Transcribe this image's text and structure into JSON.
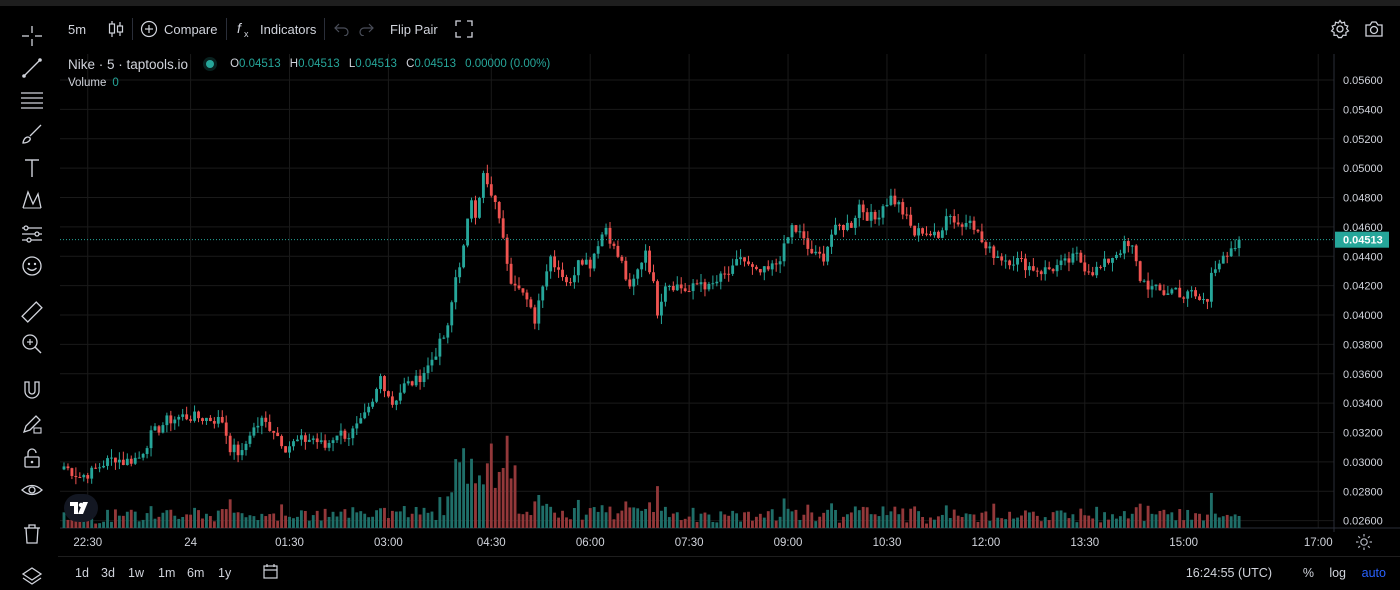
{
  "toolbar": {
    "interval": "5m",
    "compare_label": "Compare",
    "indicators_label": "Indicators",
    "flip_pair_label": "Flip Pair"
  },
  "legend": {
    "symbol": "Nike · 5 · taptools.io",
    "open_label": "O",
    "open": "0.04513",
    "high_label": "H",
    "high": "0.04513",
    "low_label": "L",
    "low": "0.04513",
    "close_label": "C",
    "close": "0.04513",
    "change": "0.00000 (0.00%)",
    "volume_label": "Volume",
    "volume": "0"
  },
  "timeframes": [
    "1d",
    "3d",
    "1w",
    "1m",
    "6m",
    "1y"
  ],
  "footer": {
    "clock": "16:24:55 (UTC)",
    "percent_label": "%",
    "log_label": "log",
    "auto_label": "auto"
  },
  "colors": {
    "up": "#26a69a",
    "down": "#ef5350",
    "up_volume": "#1f6e68",
    "down_volume": "#93383a",
    "grid": "#1a1a1a",
    "last_price": "#26a69a"
  },
  "icons": [
    "crosshair-icon",
    "trend-line-icon",
    "fib-retracement-icon",
    "brush-icon",
    "text-icon",
    "pattern-icon",
    "forecast-icon",
    "emoji-icon",
    "ruler-icon",
    "zoom-in-icon",
    "magnet-icon",
    "lock-drawing-icon",
    "unlock-icon",
    "eye-icon",
    "trash-icon",
    "layers-icon",
    "candles-icon",
    "plus-circle-icon",
    "fx-icon",
    "undo-icon",
    "redo-icon",
    "fullscreen-icon",
    "settings-gear-icon",
    "camera-icon",
    "calendar-range-icon",
    "time-settings-icon"
  ],
  "chart_data": {
    "type": "candlestick",
    "ylim": [
      0.0255,
      0.0575
    ],
    "y_ticks": [
      "0.05600",
      "0.05400",
      "0.05200",
      "0.05000",
      "0.04800",
      "0.04600",
      "0.04400",
      "0.04200",
      "0.04000",
      "0.03800",
      "0.03600",
      "0.03400",
      "0.03200",
      "0.03000",
      "0.02800",
      "0.02600"
    ],
    "y_tick_values": [
      0.056,
      0.054,
      0.052,
      0.05,
      0.048,
      0.046,
      0.044,
      0.042,
      0.04,
      0.038,
      0.036,
      0.034,
      0.032,
      0.03,
      0.028,
      0.026
    ],
    "x_ticks": [
      "22:30",
      "24",
      "01:30",
      "03:00",
      "04:30",
      "06:00",
      "07:30",
      "09:00",
      "10:30",
      "12:00",
      "13:30",
      "15:00",
      "17:00"
    ],
    "x_tick_bars": [
      6,
      32,
      57,
      82,
      108,
      133,
      158,
      183,
      208,
      233,
      258,
      283,
      317
    ],
    "last_price": 0.04513,
    "last_price_label": "0.04513",
    "grid": true,
    "anchors": [
      [
        0,
        0.0297
      ],
      [
        4,
        0.029
      ],
      [
        7,
        0.0293
      ],
      [
        10,
        0.0299
      ],
      [
        13,
        0.0303
      ],
      [
        15,
        0.03
      ],
      [
        19,
        0.0303
      ],
      [
        22,
        0.0318
      ],
      [
        26,
        0.0328
      ],
      [
        30,
        0.0331
      ],
      [
        35,
        0.033
      ],
      [
        40,
        0.0328
      ],
      [
        42,
        0.031
      ],
      [
        45,
        0.0305
      ],
      [
        47,
        0.032
      ],
      [
        50,
        0.0328
      ],
      [
        53,
        0.0322
      ],
      [
        56,
        0.031
      ],
      [
        59,
        0.0314
      ],
      [
        63,
        0.0316
      ],
      [
        66,
        0.031
      ],
      [
        69,
        0.032
      ],
      [
        72,
        0.0318
      ],
      [
        75,
        0.0326
      ],
      [
        78,
        0.0339
      ],
      [
        80,
        0.0358
      ],
      [
        83,
        0.034
      ],
      [
        86,
        0.0352
      ],
      [
        89,
        0.0355
      ],
      [
        92,
        0.0365
      ],
      [
        95,
        0.038
      ],
      [
        97,
        0.039
      ],
      [
        99,
        0.0426
      ],
      [
        101,
        0.0445
      ],
      [
        103,
        0.048
      ],
      [
        104,
        0.047
      ],
      [
        106,
        0.0495
      ],
      [
        108,
        0.048
      ],
      [
        110,
        0.0468
      ],
      [
        111,
        0.045
      ],
      [
        113,
        0.0425
      ],
      [
        115,
        0.0422
      ],
      [
        117,
        0.0408
      ],
      [
        119,
        0.0397
      ],
      [
        121,
        0.0423
      ],
      [
        123,
        0.044
      ],
      [
        125,
        0.0432
      ],
      [
        128,
        0.042
      ],
      [
        130,
        0.044
      ],
      [
        133,
        0.0435
      ],
      [
        135,
        0.045
      ],
      [
        137,
        0.046
      ],
      [
        139,
        0.0445
      ],
      [
        141,
        0.0435
      ],
      [
        143,
        0.0416
      ],
      [
        145,
        0.043
      ],
      [
        147,
        0.0445
      ],
      [
        149,
        0.042
      ],
      [
        150,
        0.0403
      ],
      [
        152,
        0.0422
      ],
      [
        155,
        0.042
      ],
      [
        158,
        0.0416
      ],
      [
        161,
        0.0423
      ],
      [
        163,
        0.0418
      ],
      [
        166,
        0.0425
      ],
      [
        169,
        0.043
      ],
      [
        171,
        0.044
      ],
      [
        173,
        0.0433
      ],
      [
        175,
        0.0428
      ],
      [
        178,
        0.043
      ],
      [
        180,
        0.0435
      ],
      [
        182,
        0.0445
      ],
      [
        184,
        0.046
      ],
      [
        186,
        0.0455
      ],
      [
        188,
        0.0445
      ],
      [
        190,
        0.044
      ],
      [
        192,
        0.044
      ],
      [
        194,
        0.0455
      ],
      [
        196,
        0.046
      ],
      [
        199,
        0.0462
      ],
      [
        201,
        0.0475
      ],
      [
        203,
        0.0468
      ],
      [
        205,
        0.0465
      ],
      [
        207,
        0.0475
      ],
      [
        209,
        0.048
      ],
      [
        211,
        0.0475
      ],
      [
        213,
        0.0465
      ],
      [
        215,
        0.0455
      ],
      [
        217,
        0.0458
      ],
      [
        219,
        0.0455
      ],
      [
        221,
        0.0452
      ],
      [
        223,
        0.047
      ],
      [
        225,
        0.0465
      ],
      [
        227,
        0.046
      ],
      [
        229,
        0.0468
      ],
      [
        231,
        0.0455
      ],
      [
        233,
        0.0445
      ],
      [
        235,
        0.0442
      ],
      [
        238,
        0.0438
      ],
      [
        241,
        0.0437
      ],
      [
        244,
        0.0433
      ],
      [
        247,
        0.043
      ],
      [
        250,
        0.0432
      ],
      [
        253,
        0.0435
      ],
      [
        256,
        0.044
      ],
      [
        258,
        0.0433
      ],
      [
        260,
        0.043
      ],
      [
        262,
        0.0432
      ],
      [
        265,
        0.044
      ],
      [
        268,
        0.0447
      ],
      [
        270,
        0.0445
      ],
      [
        272,
        0.0425
      ],
      [
        275,
        0.0418
      ],
      [
        278,
        0.0415
      ],
      [
        281,
        0.0418
      ],
      [
        283,
        0.0412
      ],
      [
        285,
        0.0415
      ],
      [
        287,
        0.041
      ],
      [
        289,
        0.041
      ],
      [
        290,
        0.0432
      ],
      [
        292,
        0.0436
      ],
      [
        294,
        0.0438
      ],
      [
        296,
        0.0446
      ],
      [
        297,
        0.0452
      ]
    ],
    "bar_count": 298,
    "volume_max": 0.55
  }
}
